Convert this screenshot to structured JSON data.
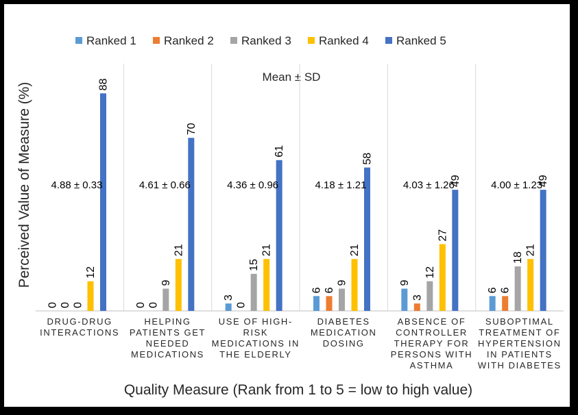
{
  "chart_data": {
    "type": "bar",
    "title": "",
    "annotation": "Mean ± SD",
    "xlabel": "Quality Measure (Rank from 1 to 5 = low to high value)",
    "ylabel": "Perceived Value of Measure (%)",
    "ylim": [
      0,
      100
    ],
    "grid": false,
    "legend_position": "top",
    "categories": [
      [
        "DRUG-DRUG",
        "INTERACTIONS"
      ],
      [
        "HELPING",
        "PATIENTS GET",
        "NEEDED",
        "MEDICATIONS"
      ],
      [
        "USE OF HIGH-",
        "RISK",
        "MEDICATIONS IN",
        "THE ELDERLY"
      ],
      [
        "DIABETES",
        "MEDICATION",
        "DOSING"
      ],
      [
        "ABSENCE OF",
        "CONTROLLER",
        "THERAPY FOR",
        "PERSONS WITH",
        "ASTHMA"
      ],
      [
        "SUBOPTIMAL",
        "TREATMENT OF",
        "HYPERTENSION",
        "IN PATIENTS",
        "WITH DIABETES"
      ]
    ],
    "mean_sd": [
      "4.88 ± 0.33",
      "4.61 ± 0.66",
      "4.36 ± 0.96",
      "4.18 ± 1.21",
      "4.03 ± 1.26",
      "4.00 ± 1.23"
    ],
    "series": [
      {
        "name": "Ranked 1",
        "color": "#5b9bd5",
        "values": [
          0,
          0,
          3,
          6,
          9,
          6
        ]
      },
      {
        "name": "Ranked 2",
        "color": "#ed7d31",
        "values": [
          0,
          0,
          0,
          6,
          3,
          6
        ]
      },
      {
        "name": "Ranked 3",
        "color": "#a5a5a5",
        "values": [
          0,
          9,
          15,
          9,
          12,
          18
        ]
      },
      {
        "name": "Ranked 4",
        "color": "#ffc000",
        "values": [
          12,
          21,
          21,
          21,
          27,
          21
        ]
      },
      {
        "name": "Ranked 5",
        "color": "#4472c4",
        "values": [
          88,
          70,
          61,
          58,
          49,
          49
        ]
      }
    ]
  }
}
